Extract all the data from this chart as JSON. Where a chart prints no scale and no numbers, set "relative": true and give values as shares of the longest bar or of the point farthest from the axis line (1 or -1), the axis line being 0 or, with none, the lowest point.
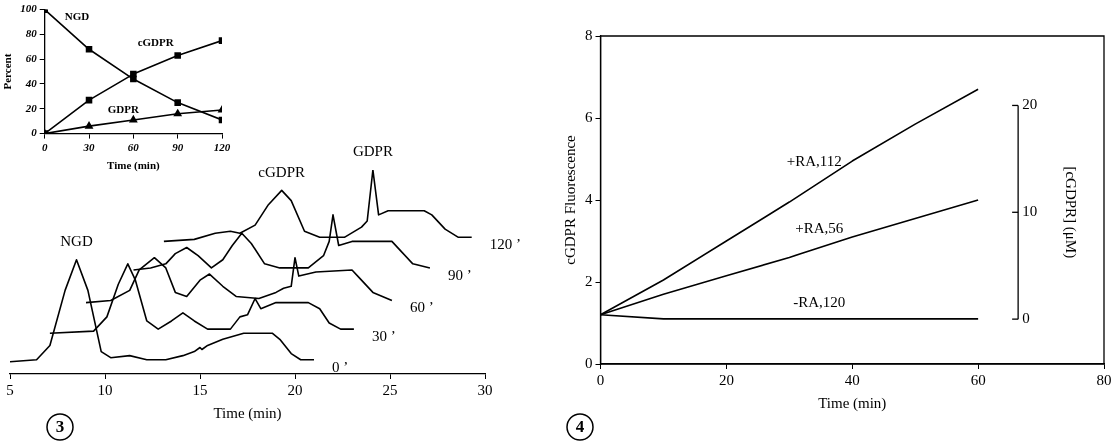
{
  "chart_data": [
    {
      "type": "line",
      "xlabel": "Time (min)",
      "ylabel": "Percent",
      "x": [
        0,
        30,
        60,
        90,
        120
      ],
      "xlim": [
        0,
        120
      ],
      "xticks": [
        0,
        30,
        60,
        90,
        120
      ],
      "ylim": [
        0,
        100
      ],
      "yticks": [
        0,
        20,
        40,
        60,
        80,
        100
      ],
      "series": [
        {
          "name": "NGD",
          "color": "#000000",
          "marker": "square",
          "values": [
            100,
            68,
            44,
            25,
            11
          ]
        },
        {
          "name": "cGDPR",
          "color": "#000000",
          "marker": "square",
          "values": [
            0,
            27,
            48,
            63,
            75
          ]
        },
        {
          "name": "GDPR",
          "color": "#000000",
          "marker": "triangle",
          "values": [
            0,
            6,
            11,
            16,
            19
          ]
        }
      ]
    },
    {
      "type": "line",
      "relative": true,
      "xlabel": "Time (min)",
      "xlim": [
        5,
        30
      ],
      "xticks": [
        5,
        10,
        15,
        20,
        25,
        30
      ],
      "annotations": [
        {
          "text": "NGD",
          "x": 8.5,
          "y": 0.56
        },
        {
          "text": "cGDPR",
          "x": 19.3,
          "y": 0.9
        },
        {
          "text": "GDPR",
          "x": 24.1,
          "y": 1
        },
        "3"
      ],
      "series": [
        {
          "name": "0 ’",
          "color": "#000000",
          "x": [
            5.0,
            6.4,
            7.1,
            7.9,
            8.5,
            9.1,
            9.8,
            10.3,
            11.3,
            12.2,
            13.2,
            14.1,
            14.7,
            15.0,
            15.1,
            15.4,
            16.2,
            17.3,
            18.8,
            19.2,
            19.8,
            20.3,
            21.0
          ],
          "values": [
            0.06,
            0.07,
            0.14,
            0.41,
            0.56,
            0.41,
            0.11,
            0.08,
            0.09,
            0.07,
            0.07,
            0.09,
            0.11,
            0.13,
            0.12,
            0.14,
            0.17,
            0.2,
            0.2,
            0.17,
            0.1,
            0.07,
            0.07
          ]
        },
        {
          "name": "30 ’",
          "color": "#000000",
          "x": [
            7.1,
            9.4,
            10.1,
            10.7,
            11.2,
            11.6,
            12.2,
            12.8,
            13.5,
            14.1,
            14.7,
            15.4,
            16.6,
            17.1,
            17.5,
            17.9,
            18.2,
            19.0,
            20.7,
            21.3,
            21.8,
            22.4,
            23.1
          ],
          "values": [
            0.2,
            0.21,
            0.28,
            0.44,
            0.54,
            0.46,
            0.26,
            0.22,
            0.26,
            0.3,
            0.26,
            0.22,
            0.22,
            0.28,
            0.29,
            0.37,
            0.32,
            0.35,
            0.35,
            0.32,
            0.25,
            0.22,
            0.22
          ]
        },
        {
          "name": "60 ’",
          "color": "#000000",
          "x": [
            9.0,
            10.3,
            11.3,
            11.8,
            12.6,
            13.2,
            13.7,
            14.3,
            15.0,
            15.5,
            16.2,
            16.9,
            18.1,
            19.0,
            19.4,
            19.8,
            20.0,
            20.2,
            21.1,
            23.0,
            23.4,
            24.1,
            25.1
          ],
          "values": [
            0.35,
            0.36,
            0.41,
            0.51,
            0.57,
            0.52,
            0.4,
            0.38,
            0.46,
            0.49,
            0.43,
            0.38,
            0.37,
            0.4,
            0.42,
            0.43,
            0.57,
            0.48,
            0.5,
            0.51,
            0.47,
            0.4,
            0.36
          ]
        },
        {
          "name": "90 ’",
          "color": "#000000",
          "x": [
            11.5,
            12.4,
            13.2,
            13.7,
            14.3,
            14.9,
            15.6,
            16.2,
            16.7,
            17.2,
            17.7,
            18.4,
            19.2,
            20.7,
            21.5,
            21.8,
            22.0,
            22.3,
            23.0,
            25.1,
            25.6,
            26.2,
            27.1
          ],
          "values": [
            0.51,
            0.52,
            0.54,
            0.59,
            0.62,
            0.58,
            0.52,
            0.56,
            0.63,
            0.69,
            0.64,
            0.54,
            0.52,
            0.52,
            0.58,
            0.65,
            0.78,
            0.63,
            0.65,
            0.65,
            0.6,
            0.54,
            0.52
          ]
        },
        {
          "name": "120 ’",
          "color": "#000000",
          "x": [
            13.1,
            14.7,
            15.8,
            16.6,
            17.1,
            17.9,
            18.6,
            19.3,
            19.8,
            20.5,
            21.3,
            22.6,
            23.5,
            23.8,
            24.1,
            24.4,
            24.9,
            26.8,
            27.2,
            27.9,
            28.6,
            29.3
          ],
          "values": [
            0.65,
            0.66,
            0.69,
            0.7,
            0.69,
            0.73,
            0.83,
            0.9,
            0.85,
            0.7,
            0.67,
            0.67,
            0.72,
            0.75,
            1,
            0.78,
            0.8,
            0.8,
            0.78,
            0.71,
            0.67,
            0.67
          ]
        }
      ]
    },
    {
      "type": "line",
      "xlabel": "Time (min)",
      "ylabel": "cGDPR Fluorescence",
      "y2label": "[cGDPR] (μM)",
      "x": [
        0,
        10,
        20,
        30,
        40,
        50,
        60
      ],
      "xlim": [
        0,
        80
      ],
      "xticks": [
        0,
        20,
        40,
        60,
        80
      ],
      "ylim": [
        0,
        8
      ],
      "yticks": [
        0,
        2,
        4,
        6,
        8
      ],
      "y2lim": [
        -4.2,
        26.5
      ],
      "y2ticks": [
        0,
        10,
        20
      ],
      "annotations": [
        "4"
      ],
      "series": [
        {
          "name": "+RA,112",
          "color": "#000000",
          "values": [
            1.2,
            2.05,
            3.0,
            3.95,
            4.95,
            5.85,
            6.7
          ]
        },
        {
          "name": "+RA,56",
          "color": "#000000",
          "values": [
            1.2,
            1.7,
            2.15,
            2.6,
            3.1,
            3.55,
            4.0
          ]
        },
        {
          "name": "-RA,120",
          "color": "#000000",
          "values": [
            1.2,
            1.1,
            1.1,
            1.1,
            1.1,
            1.1,
            1.1
          ]
        }
      ]
    }
  ]
}
